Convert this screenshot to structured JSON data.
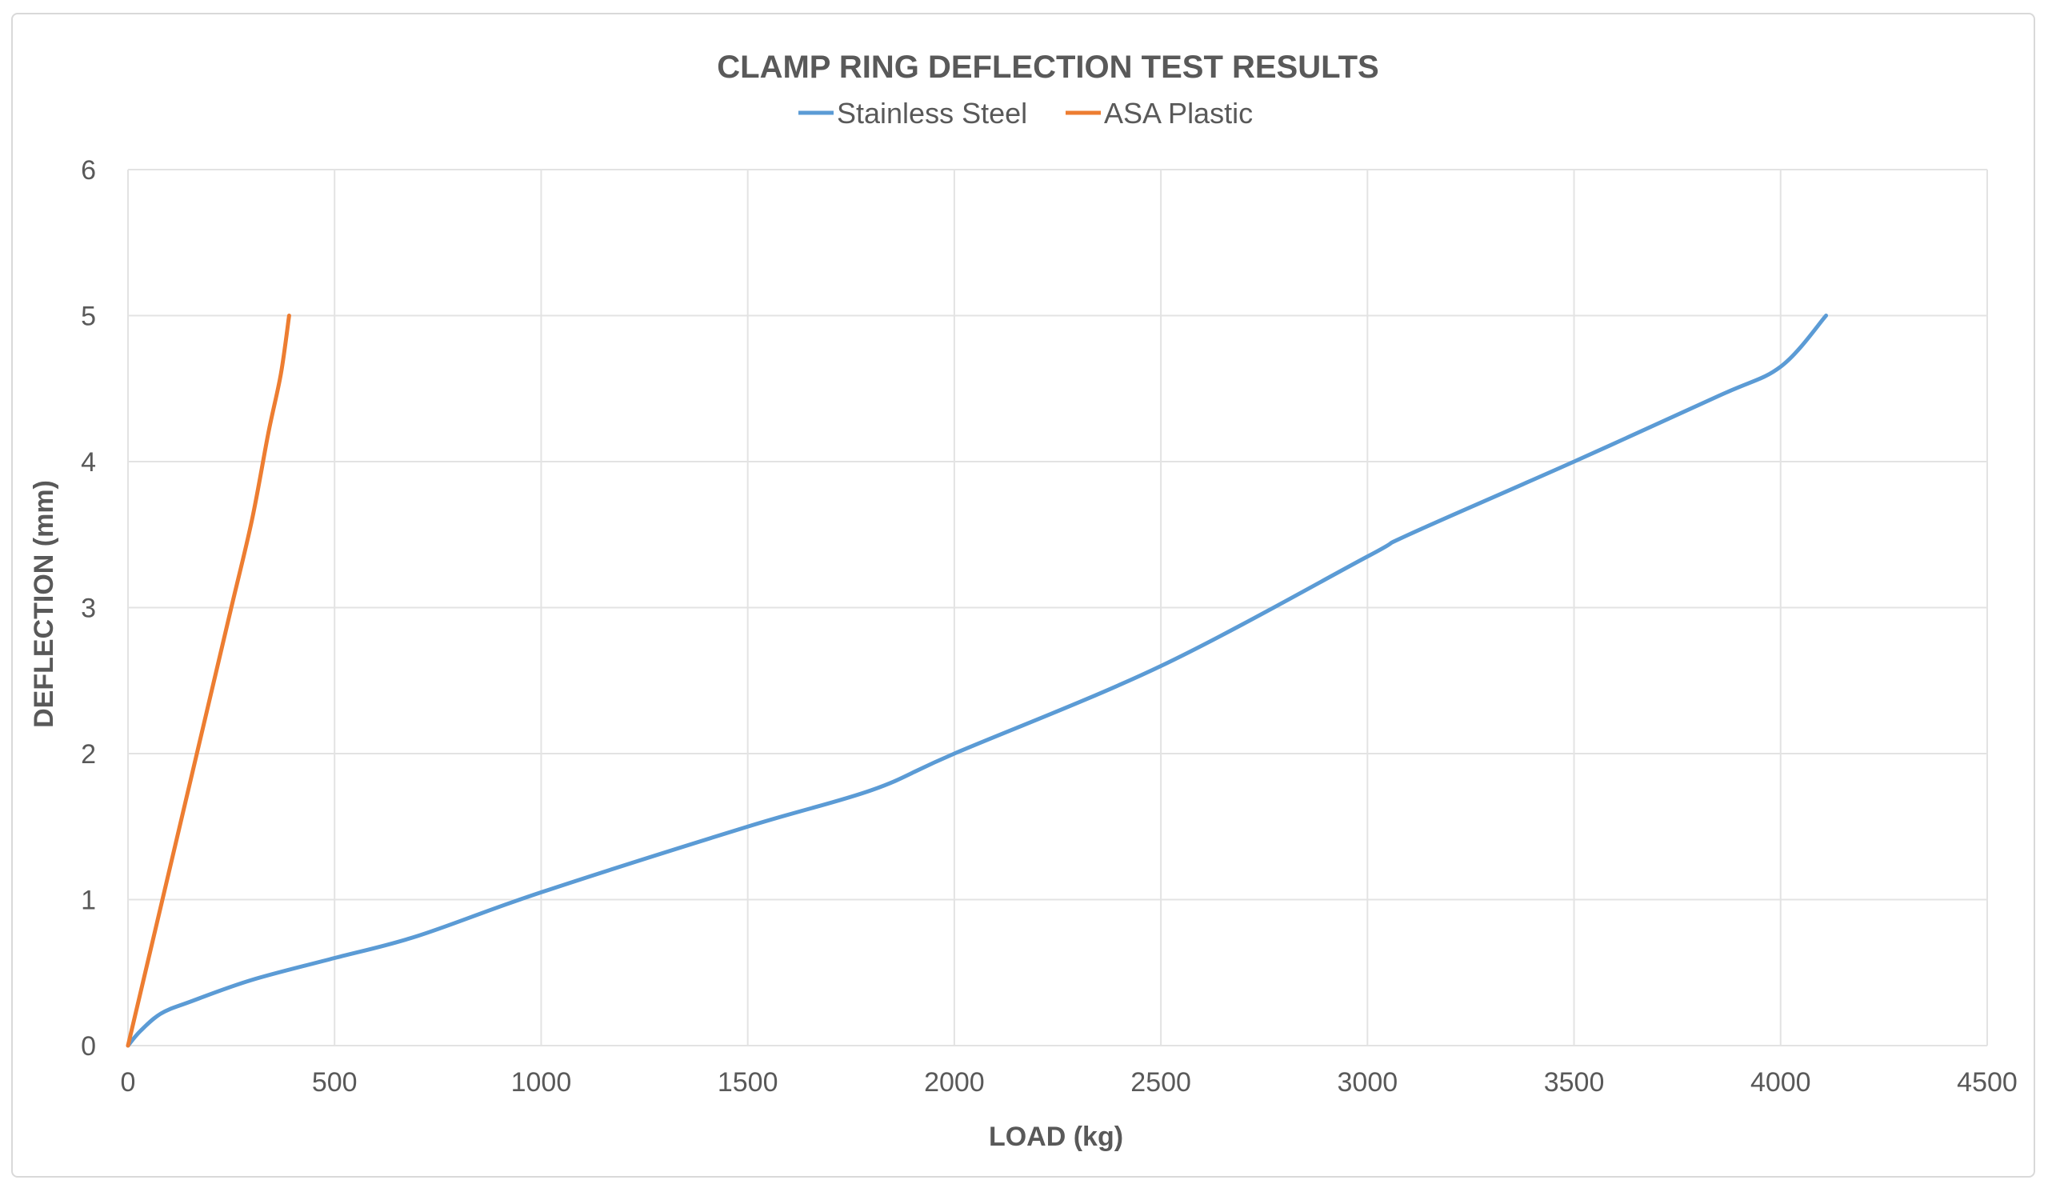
{
  "chart_data": {
    "type": "line",
    "title": "CLAMP RING DEFLECTION  TEST RESULTS",
    "xlabel": "LOAD (kg)",
    "ylabel": "DEFLECTION (mm)",
    "xlim": [
      0,
      4500
    ],
    "ylim": [
      0,
      6
    ],
    "x_ticks": [
      "0",
      "500",
      "1000",
      "1500",
      "2000",
      "2500",
      "3000",
      "3500",
      "4000",
      "4500"
    ],
    "y_ticks": [
      "0",
      "1",
      "2",
      "3",
      "4",
      "5",
      "6"
    ],
    "grid": true,
    "legend_position": "top",
    "series": [
      {
        "name": "Stainless Steel",
        "color": "#5b9bd5",
        "points": [
          [
            0,
            0
          ],
          [
            30,
            0.1
          ],
          [
            80,
            0.22
          ],
          [
            150,
            0.3
          ],
          [
            300,
            0.45
          ],
          [
            500,
            0.6
          ],
          [
            700,
            0.75
          ],
          [
            1000,
            1.05
          ],
          [
            1500,
            1.5
          ],
          [
            1800,
            1.75
          ],
          [
            2000,
            2.0
          ],
          [
            2500,
            2.6
          ],
          [
            3000,
            3.35
          ],
          [
            3100,
            3.5
          ],
          [
            3500,
            4.0
          ],
          [
            3850,
            4.45
          ],
          [
            4000,
            4.65
          ],
          [
            4110,
            5.0
          ]
        ]
      },
      {
        "name": "ASA Plastic",
        "color": "#ed7d31",
        "points": [
          [
            0,
            0
          ],
          [
            50,
            0.6
          ],
          [
            100,
            1.2
          ],
          [
            150,
            1.8
          ],
          [
            200,
            2.4
          ],
          [
            250,
            3.0
          ],
          [
            300,
            3.6
          ],
          [
            340,
            4.2
          ],
          [
            370,
            4.6
          ],
          [
            390,
            5.0
          ]
        ]
      }
    ]
  }
}
